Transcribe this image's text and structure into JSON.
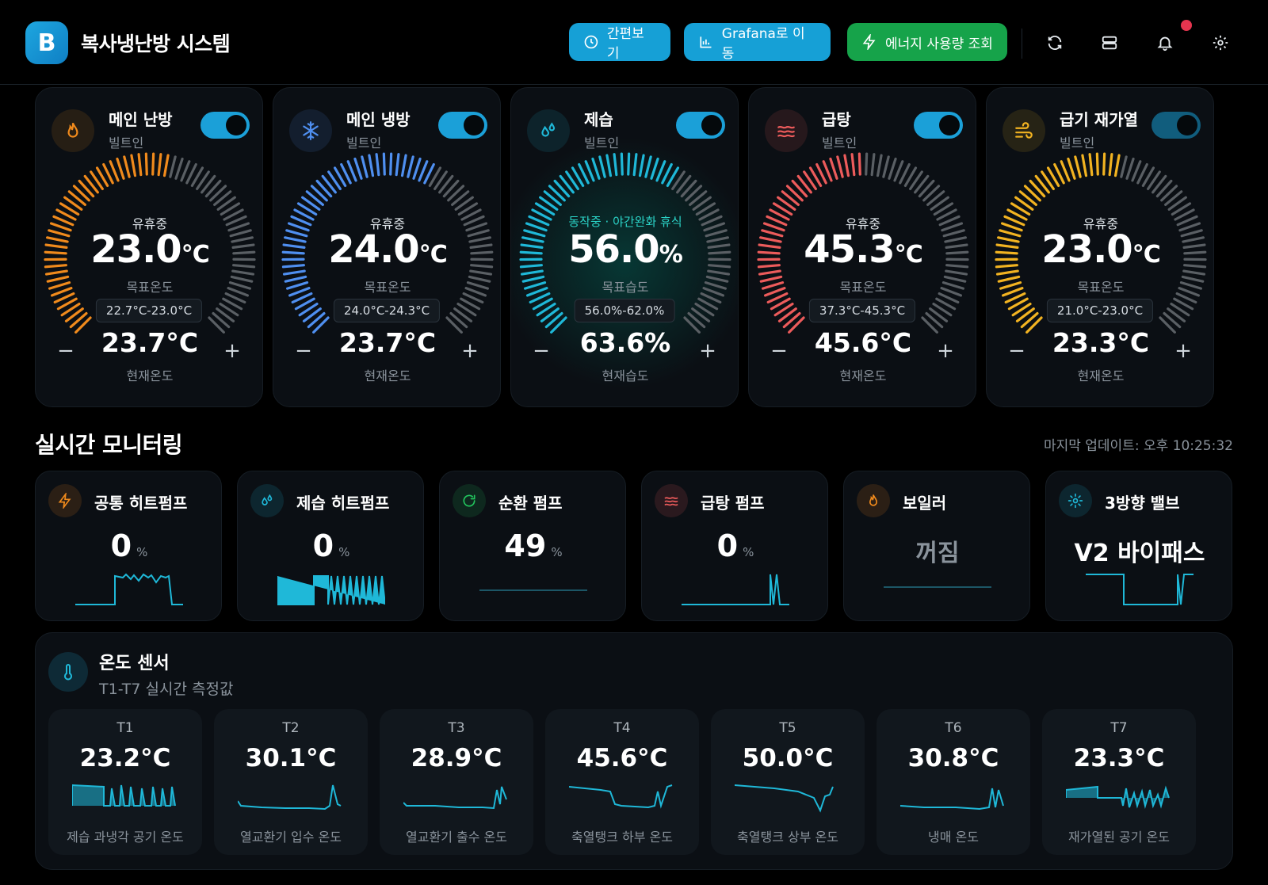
{
  "app": {
    "title": "복사냉난방 시스템",
    "logo_text": "B"
  },
  "toolbar": {
    "simple_view": "간편보기",
    "grafana": "Grafana로 이동",
    "energy": "에너지 사용량 조회",
    "icons": [
      "refresh-icon",
      "server-icon",
      "bell-icon",
      "gear-icon"
    ]
  },
  "controls": [
    {
      "title": "메인 난방",
      "subtitle": "빌트인",
      "status": "유휴중",
      "value": "23.0",
      "unit": "°C",
      "target_label": "목표온도",
      "range": "22.7°C-23.0°C",
      "current": "23.7°C",
      "current_label": "현재온도",
      "color": "#f08a1c",
      "fill": 0.55,
      "on": true,
      "icon": "flame-icon",
      "minus": "−",
      "plus": "+"
    },
    {
      "title": "메인 냉방",
      "subtitle": "빌트인",
      "status": "유휴중",
      "value": "24.0",
      "unit": "°C",
      "target_label": "목표온도",
      "range": "24.0°C-24.3°C",
      "current": "23.7°C",
      "current_label": "현재온도",
      "color": "#4f8ff0",
      "fill": 0.6,
      "on": true,
      "icon": "snowflake-icon",
      "minus": "−",
      "plus": "+"
    },
    {
      "title": "제습",
      "subtitle": "빌트인",
      "status": "동작중 · 야간완화 휴식",
      "value": "56.0",
      "unit": "%",
      "target_label": "목표습도",
      "range": "56.0%-62.0%",
      "current": "63.6%",
      "current_label": "현재습도",
      "color": "#1fb8d8",
      "fill": 0.62,
      "on": true,
      "icon": "droplets-icon",
      "minus": "−",
      "plus": "+"
    },
    {
      "title": "급탕",
      "subtitle": "빌트인",
      "status": "유휴중",
      "value": "45.3",
      "unit": "°C",
      "target_label": "목표온도",
      "range": "37.3°C-45.3°C",
      "current": "45.6°C",
      "current_label": "현재온도",
      "color": "#ec5b5b",
      "fill": 0.5,
      "on": true,
      "icon": "waves-icon",
      "minus": "−",
      "plus": "+"
    },
    {
      "title": "급기 재가열",
      "subtitle": "빌트인",
      "status": "유휴중",
      "value": "23.0",
      "unit": "°C",
      "target_label": "목표온도",
      "range": "21.0°C-23.0°C",
      "current": "23.3°C",
      "current_label": "현재온도",
      "color": "#f2b321",
      "fill": 0.55,
      "on": true,
      "icon": "wind-icon",
      "minus": "−",
      "plus": "+"
    }
  ],
  "monitoring": {
    "title": "실시간 모니터링",
    "last_update": "마지막 업데이트: 오후 10:25:32",
    "items": [
      {
        "title": "공통 히트펌프",
        "value": "0",
        "unit": "%",
        "icon": "bolt-icon",
        "icon_color": "#f08a1c"
      },
      {
        "title": "제습 히트펌프",
        "value": "0",
        "unit": "%",
        "icon": "droplets-icon",
        "icon_color": "#1fb8d8"
      },
      {
        "title": "순환 펌프",
        "value": "49",
        "unit": "%",
        "icon": "rotate-icon",
        "icon_color": "#22c55e"
      },
      {
        "title": "급탕 펌프",
        "value": "0",
        "unit": "%",
        "icon": "waves-icon",
        "icon_color": "#ec5b5b"
      },
      {
        "title": "보일러",
        "text": "꺼짐",
        "icon": "flame-icon",
        "icon_color": "#f08a1c"
      },
      {
        "title": "3방향 밸브",
        "text": "V2 바이패스",
        "icon": "gear-icon",
        "icon_color": "#1fb8d8"
      }
    ]
  },
  "sensors": {
    "title": "온도 센서",
    "subtitle": "T1-T7 실시간 측정값",
    "items": [
      {
        "name": "T1",
        "value": "23.2°C",
        "desc": "제습 과냉각 공기 온도"
      },
      {
        "name": "T2",
        "value": "30.1°C",
        "desc": "열교환기 입수 온도"
      },
      {
        "name": "T3",
        "value": "28.9°C",
        "desc": "열교환기 출수 온도"
      },
      {
        "name": "T4",
        "value": "45.6°C",
        "desc": "축열탱크 하부 온도"
      },
      {
        "name": "T5",
        "value": "50.0°C",
        "desc": "축열탱크 상부 온도"
      },
      {
        "name": "T6",
        "value": "30.8°C",
        "desc": "냉매 온도"
      },
      {
        "name": "T7",
        "value": "23.3°C",
        "desc": "재가열된 공기 온도"
      }
    ]
  },
  "colors": {
    "accent": "#16a0d6",
    "energy": "#16a34a",
    "spark": "#1fb8d8"
  }
}
